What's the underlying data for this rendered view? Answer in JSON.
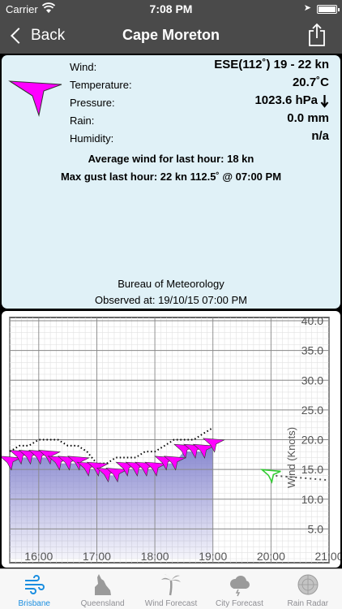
{
  "status": {
    "carrier": "Carrier",
    "time": "7:08 PM"
  },
  "nav": {
    "back_label": "Back",
    "title": "Cape Moreton"
  },
  "obs": {
    "rows": [
      {
        "label": "Wind:",
        "value": "ESE(112˚) 19 - 22 kn"
      },
      {
        "label": "Temperature:",
        "value": "20.7˚C"
      },
      {
        "label": "Pressure:",
        "value": "1023.6  hPa"
      },
      {
        "label": "Rain:",
        "value": "0.0 mm"
      },
      {
        "label": "Humidity:",
        "value": "n/a"
      }
    ],
    "pressure_trend": "falling",
    "avg_wind": "Average wind for last hour: 18 kn",
    "max_gust": "Max gust last hour: 22 kn 112.5˚ @ 07:00 PM",
    "source": "Bureau of Meteorology",
    "observed": "Observed at: 19/10/15 07:00 PM"
  },
  "chart_data": {
    "type": "line",
    "ylabel": "Wind (Knots)",
    "ylim": [
      0,
      40
    ],
    "y_ticks": [
      "5.0",
      "10.0",
      "15.0",
      "20.0",
      "25.0",
      "30.0",
      "35.0",
      "40.0"
    ],
    "xlim": [
      15.5,
      21.0
    ],
    "x_ticks": [
      "16:00",
      "17:00",
      "18:00",
      "19:00",
      "20:00",
      "21:00"
    ],
    "grid": true,
    "colors": {
      "wind_area": "#8080cc",
      "barb": "#ff00ff",
      "forecast_barb": "#33cc33",
      "gust": "#000000"
    },
    "series": [
      {
        "x": [
          15.5,
          15.67,
          15.83,
          16.0,
          16.17,
          16.33,
          16.5,
          16.67,
          16.83,
          17.0,
          17.17,
          17.33,
          17.5,
          17.67,
          17.83,
          18.0,
          18.17,
          18.33,
          18.5,
          18.67,
          18.83,
          19.0
        ],
        "values": [
          16,
          17,
          17,
          17,
          17,
          16,
          16,
          16,
          15,
          15,
          14,
          14,
          15,
          15,
          15,
          15,
          16,
          16,
          18,
          18,
          18,
          19
        ]
      },
      {
        "x": [
          15.5,
          15.67,
          15.83,
          16.0,
          16.17,
          16.33,
          16.5,
          16.67,
          16.83,
          17.0,
          17.17,
          17.33,
          17.5,
          17.67,
          17.83,
          18.0,
          18.17,
          18.33,
          18.5,
          18.67,
          18.83,
          19.0
        ],
        "values": [
          18,
          19,
          19,
          20,
          20,
          20,
          19,
          19,
          18,
          16,
          16,
          17,
          17,
          17,
          18,
          18,
          19,
          20,
          20,
          20,
          21,
          22
        ]
      },
      {
        "x": [
          20.0,
          20.25,
          20.5,
          20.75,
          21.0
        ],
        "values": [
          14,
          13.8,
          13.6,
          13.4,
          13.2
        ]
      }
    ]
  },
  "tabs": [
    {
      "label": "Brisbane",
      "icon": "wind-icon",
      "active": true
    },
    {
      "label": "Queensland",
      "icon": "queensland-map-icon",
      "active": false
    },
    {
      "label": "Wind Forecast",
      "icon": "palm-tree-icon",
      "active": false
    },
    {
      "label": "City Forecast",
      "icon": "storm-cloud-icon",
      "active": false
    },
    {
      "label": "Rain Radar",
      "icon": "radar-icon",
      "active": false
    }
  ]
}
